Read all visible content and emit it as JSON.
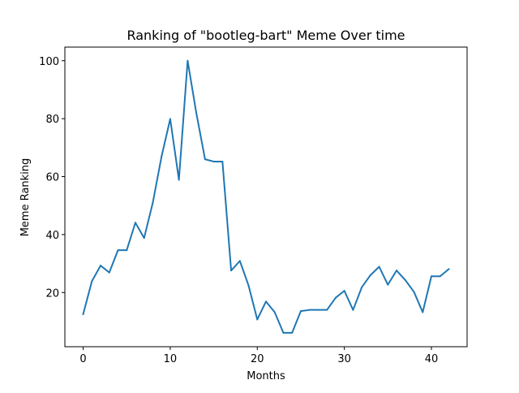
{
  "chart_data": {
    "type": "line",
    "title": "Ranking of \"bootleg-bart\" Meme Over time",
    "xlabel": "Months",
    "ylabel": "Meme Ranking",
    "xlim": [
      -2.1,
      44.1
    ],
    "ylim": [
      1.3,
      104.7
    ],
    "xticks": [
      0,
      10,
      20,
      30,
      40
    ],
    "yticks": [
      20,
      40,
      60,
      80,
      100
    ],
    "grid": false,
    "legend": "none",
    "series": [
      {
        "color": "#1f77b4",
        "x": [
          0,
          1,
          2,
          3,
          4,
          5,
          6,
          7,
          8,
          9,
          10,
          11,
          12,
          13,
          14,
          15,
          16,
          17,
          18,
          19,
          20,
          21,
          22,
          23,
          24,
          25,
          26,
          27,
          28,
          29,
          30,
          31,
          32,
          33,
          34,
          35,
          36,
          37,
          38,
          39,
          40,
          41,
          42
        ],
        "y": [
          12.5,
          23.9,
          29.3,
          26.9,
          34.6,
          34.6,
          44.1,
          38.8,
          51.0,
          66.9,
          79.9,
          58.9,
          100.0,
          81.9,
          66.0,
          65.2,
          65.2,
          27.6,
          30.9,
          22.4,
          10.7,
          16.9,
          13.2,
          6.1,
          6.1,
          13.6,
          14.0,
          14.0,
          14.0,
          18.2,
          20.6,
          14.0,
          21.8,
          26.0,
          28.9,
          22.7,
          27.6,
          24.3,
          20.2,
          13.2,
          25.6,
          25.6,
          28.1
        ]
      }
    ]
  }
}
